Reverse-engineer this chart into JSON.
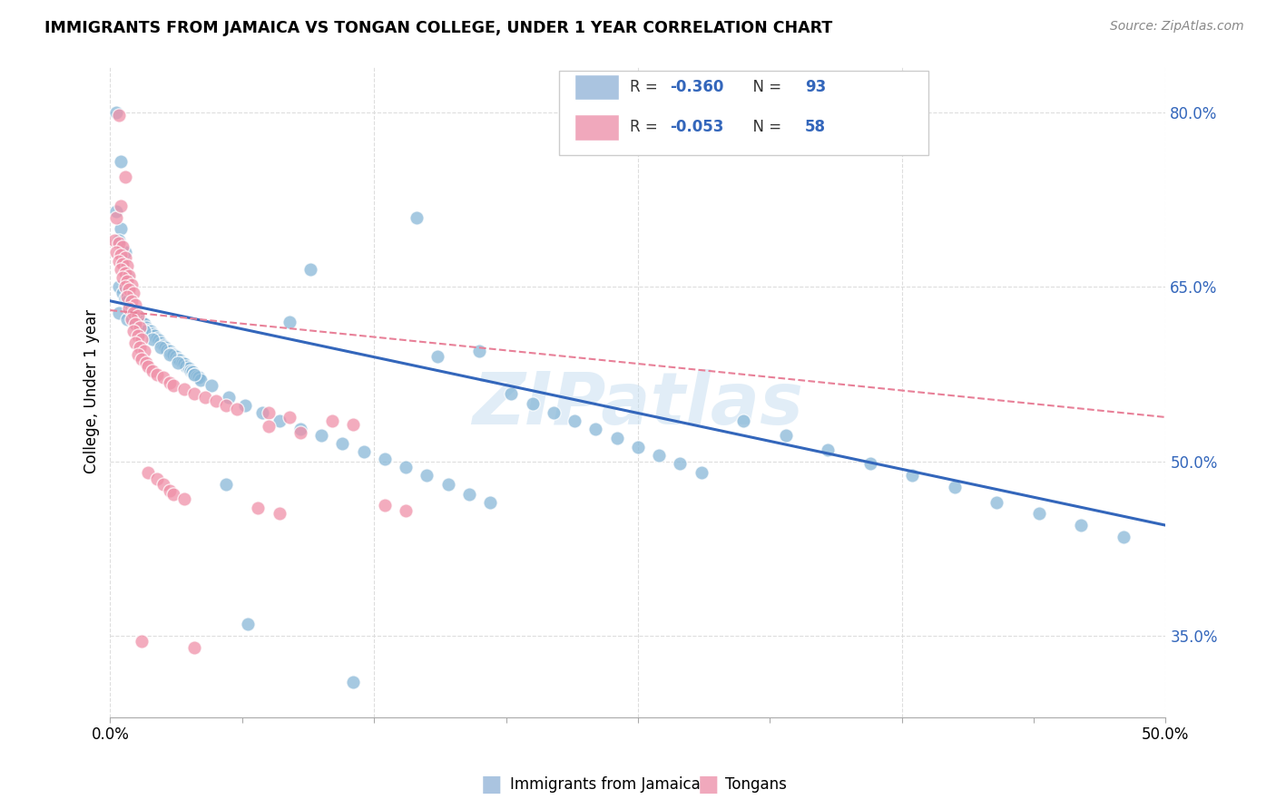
{
  "title": "IMMIGRANTS FROM JAMAICA VS TONGAN COLLEGE, UNDER 1 YEAR CORRELATION CHART",
  "source": "Source: ZipAtlas.com",
  "ylabel": "College, Under 1 year",
  "right_yticks": [
    "80.0%",
    "65.0%",
    "50.0%",
    "35.0%"
  ],
  "right_ytick_vals": [
    0.8,
    0.65,
    0.5,
    0.35
  ],
  "xlim": [
    0.0,
    0.5
  ],
  "ylim": [
    0.28,
    0.84
  ],
  "legend_color1": "#aac4e0",
  "legend_color2": "#f0a8bc",
  "watermark": "ZIPatlas",
  "jamaica_color": "#88b8d8",
  "tongan_color": "#f090a8",
  "jamaica_line_color": "#3366bb",
  "tongan_line_color": "#e88098",
  "jamaica_line": [
    [
      0.0,
      0.638
    ],
    [
      0.5,
      0.445
    ]
  ],
  "tongan_line": [
    [
      0.0,
      0.63
    ],
    [
      0.5,
      0.538
    ]
  ],
  "jamaica_scatter": [
    [
      0.003,
      0.8
    ],
    [
      0.005,
      0.758
    ],
    [
      0.003,
      0.715
    ],
    [
      0.005,
      0.7
    ],
    [
      0.004,
      0.69
    ],
    [
      0.006,
      0.672
    ],
    [
      0.007,
      0.68
    ],
    [
      0.008,
      0.66
    ],
    [
      0.004,
      0.65
    ],
    [
      0.006,
      0.645
    ],
    [
      0.007,
      0.64
    ],
    [
      0.008,
      0.638
    ],
    [
      0.009,
      0.635
    ],
    [
      0.01,
      0.632
    ],
    [
      0.011,
      0.63
    ],
    [
      0.012,
      0.628
    ],
    [
      0.013,
      0.625
    ],
    [
      0.014,
      0.622
    ],
    [
      0.015,
      0.62
    ],
    [
      0.016,
      0.618
    ],
    [
      0.017,
      0.615
    ],
    [
      0.018,
      0.613
    ],
    [
      0.019,
      0.612
    ],
    [
      0.02,
      0.61
    ],
    [
      0.021,
      0.608
    ],
    [
      0.022,
      0.606
    ],
    [
      0.023,
      0.604
    ],
    [
      0.024,
      0.602
    ],
    [
      0.025,
      0.6
    ],
    [
      0.026,
      0.598
    ],
    [
      0.027,
      0.596
    ],
    [
      0.028,
      0.595
    ],
    [
      0.029,
      0.593
    ],
    [
      0.03,
      0.592
    ],
    [
      0.031,
      0.59
    ],
    [
      0.032,
      0.588
    ],
    [
      0.033,
      0.587
    ],
    [
      0.034,
      0.585
    ],
    [
      0.035,
      0.584
    ],
    [
      0.036,
      0.582
    ],
    [
      0.037,
      0.58
    ],
    [
      0.038,
      0.578
    ],
    [
      0.039,
      0.577
    ],
    [
      0.04,
      0.575
    ],
    [
      0.041,
      0.573
    ],
    [
      0.042,
      0.572
    ],
    [
      0.043,
      0.57
    ],
    [
      0.004,
      0.628
    ],
    [
      0.008,
      0.622
    ],
    [
      0.012,
      0.618
    ],
    [
      0.016,
      0.612
    ],
    [
      0.02,
      0.605
    ],
    [
      0.024,
      0.598
    ],
    [
      0.028,
      0.592
    ],
    [
      0.032,
      0.585
    ],
    [
      0.04,
      0.575
    ],
    [
      0.048,
      0.565
    ],
    [
      0.056,
      0.555
    ],
    [
      0.064,
      0.548
    ],
    [
      0.072,
      0.542
    ],
    [
      0.08,
      0.535
    ],
    [
      0.09,
      0.528
    ],
    [
      0.1,
      0.522
    ],
    [
      0.11,
      0.515
    ],
    [
      0.12,
      0.508
    ],
    [
      0.13,
      0.502
    ],
    [
      0.14,
      0.495
    ],
    [
      0.15,
      0.488
    ],
    [
      0.16,
      0.48
    ],
    [
      0.17,
      0.472
    ],
    [
      0.18,
      0.465
    ],
    [
      0.19,
      0.558
    ],
    [
      0.2,
      0.55
    ],
    [
      0.21,
      0.542
    ],
    [
      0.22,
      0.535
    ],
    [
      0.23,
      0.528
    ],
    [
      0.24,
      0.52
    ],
    [
      0.25,
      0.512
    ],
    [
      0.26,
      0.505
    ],
    [
      0.27,
      0.498
    ],
    [
      0.28,
      0.49
    ],
    [
      0.3,
      0.535
    ],
    [
      0.32,
      0.522
    ],
    [
      0.34,
      0.51
    ],
    [
      0.36,
      0.498
    ],
    [
      0.38,
      0.488
    ],
    [
      0.4,
      0.478
    ],
    [
      0.42,
      0.465
    ],
    [
      0.44,
      0.455
    ],
    [
      0.46,
      0.445
    ],
    [
      0.48,
      0.435
    ],
    [
      0.145,
      0.71
    ],
    [
      0.095,
      0.665
    ],
    [
      0.175,
      0.595
    ],
    [
      0.155,
      0.59
    ],
    [
      0.065,
      0.36
    ],
    [
      0.115,
      0.31
    ],
    [
      0.085,
      0.62
    ],
    [
      0.055,
      0.48
    ]
  ],
  "tongan_scatter": [
    [
      0.004,
      0.798
    ],
    [
      0.007,
      0.745
    ],
    [
      0.003,
      0.71
    ],
    [
      0.005,
      0.72
    ],
    [
      0.002,
      0.69
    ],
    [
      0.004,
      0.688
    ],
    [
      0.006,
      0.685
    ],
    [
      0.003,
      0.68
    ],
    [
      0.005,
      0.678
    ],
    [
      0.007,
      0.675
    ],
    [
      0.004,
      0.672
    ],
    [
      0.006,
      0.67
    ],
    [
      0.008,
      0.668
    ],
    [
      0.005,
      0.665
    ],
    [
      0.007,
      0.662
    ],
    [
      0.009,
      0.66
    ],
    [
      0.006,
      0.658
    ],
    [
      0.008,
      0.655
    ],
    [
      0.01,
      0.652
    ],
    [
      0.007,
      0.65
    ],
    [
      0.009,
      0.648
    ],
    [
      0.011,
      0.645
    ],
    [
      0.008,
      0.642
    ],
    [
      0.01,
      0.638
    ],
    [
      0.012,
      0.635
    ],
    [
      0.009,
      0.632
    ],
    [
      0.011,
      0.628
    ],
    [
      0.013,
      0.625
    ],
    [
      0.01,
      0.622
    ],
    [
      0.012,
      0.618
    ],
    [
      0.014,
      0.615
    ],
    [
      0.011,
      0.612
    ],
    [
      0.013,
      0.608
    ],
    [
      0.015,
      0.605
    ],
    [
      0.012,
      0.602
    ],
    [
      0.014,
      0.598
    ],
    [
      0.016,
      0.595
    ],
    [
      0.013,
      0.592
    ],
    [
      0.015,
      0.588
    ],
    [
      0.017,
      0.585
    ],
    [
      0.018,
      0.582
    ],
    [
      0.02,
      0.578
    ],
    [
      0.022,
      0.575
    ],
    [
      0.025,
      0.572
    ],
    [
      0.028,
      0.568
    ],
    [
      0.03,
      0.565
    ],
    [
      0.035,
      0.562
    ],
    [
      0.04,
      0.558
    ],
    [
      0.045,
      0.555
    ],
    [
      0.05,
      0.552
    ],
    [
      0.055,
      0.548
    ],
    [
      0.06,
      0.545
    ],
    [
      0.075,
      0.542
    ],
    [
      0.085,
      0.538
    ],
    [
      0.105,
      0.535
    ],
    [
      0.115,
      0.532
    ],
    [
      0.018,
      0.49
    ],
    [
      0.022,
      0.485
    ],
    [
      0.025,
      0.48
    ],
    [
      0.028,
      0.475
    ],
    [
      0.03,
      0.472
    ],
    [
      0.035,
      0.468
    ],
    [
      0.015,
      0.345
    ],
    [
      0.04,
      0.34
    ],
    [
      0.07,
      0.46
    ],
    [
      0.08,
      0.455
    ],
    [
      0.13,
      0.462
    ],
    [
      0.14,
      0.458
    ],
    [
      0.075,
      0.53
    ],
    [
      0.09,
      0.525
    ]
  ],
  "grid_color": "#dddddd",
  "background_color": "#ffffff"
}
